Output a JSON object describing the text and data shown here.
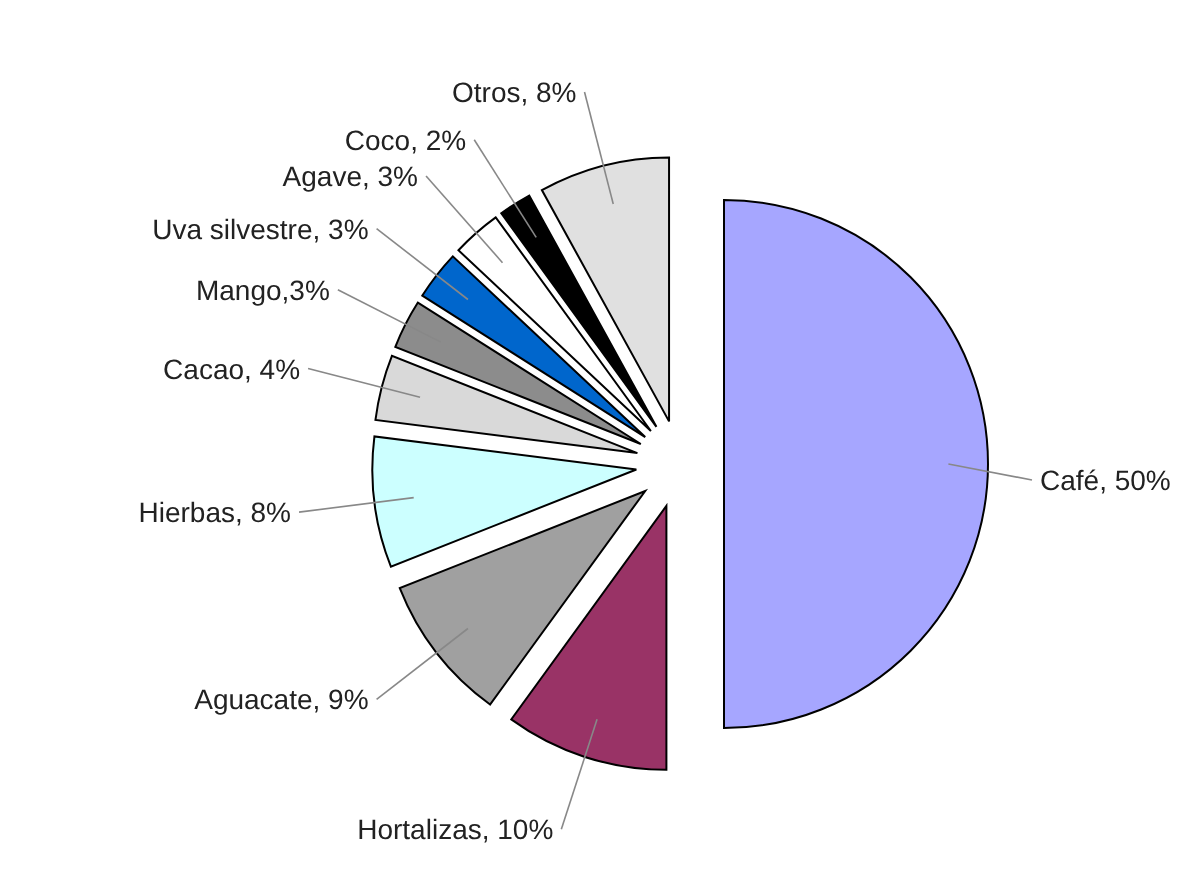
{
  "chart_data": {
    "type": "pie",
    "categories": [
      "Café, 50%",
      "Hortalizas, 10%",
      "Aguacate, 9%",
      "Hierbas, 8%",
      "Cacao, 4%",
      "Mango,3%",
      "Uva silvestre, 3%",
      "Agave, 3%",
      "Coco, 2%",
      "Otros, 8%"
    ],
    "values": [
      50,
      10,
      9,
      8,
      4,
      3,
      3,
      3,
      2,
      8
    ],
    "colors": [
      "#a6a6ff",
      "#993366",
      "#a0a0a0",
      "#ccffff",
      "#d9d9d9",
      "#8c8c8c",
      "#0066cc",
      "#ffffff",
      "#000000",
      "#e0e0e0"
    ],
    "legend": false
  }
}
